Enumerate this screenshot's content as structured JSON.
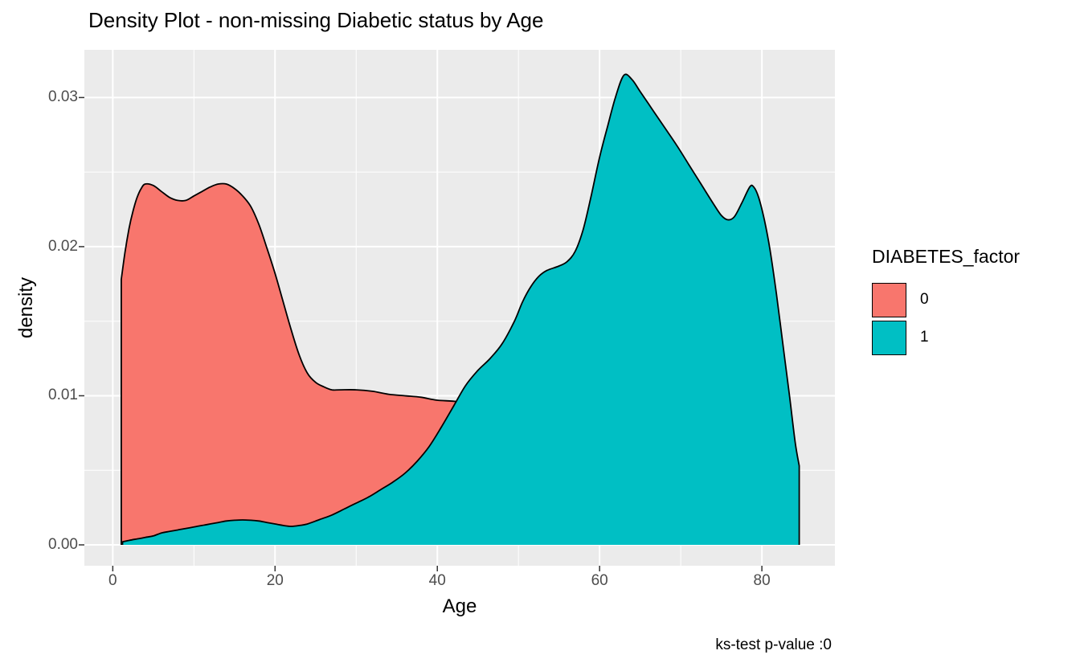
{
  "title": "Density Plot - non-missing Diabetic status by Age",
  "caption": "ks-test p-value :0",
  "legend": {
    "title": "DIABETES_factor",
    "items": [
      {
        "label": "0",
        "color": "#F8766D"
      },
      {
        "label": "1",
        "color": "#00BFC4"
      }
    ]
  },
  "colors": {
    "panel_bg": "#EBEBEB",
    "grid": "#FFFFFF",
    "outline": "#000000",
    "tick_mark": "#333333",
    "tick_text": "#4D4D4D",
    "fill_0": "#F8766D",
    "fill_1": "#00BFC4"
  },
  "chart_data": {
    "type": "area",
    "subtype": "density",
    "title": "Density Plot - non-missing Diabetic status by Age",
    "xlabel": "Age",
    "ylabel": "density",
    "legend_title": "DIABETES_factor",
    "legend_position": "right",
    "grid": "white major and minor gridlines on grey panel",
    "xlim": [
      -3.5,
      89
    ],
    "ylim": [
      -0.0014,
      0.0332
    ],
    "x_ticks": [
      0,
      20,
      40,
      60,
      80
    ],
    "y_ticks": [
      {
        "label": "0.00",
        "value": 0
      },
      {
        "label": "0.01",
        "value": 0.01
      },
      {
        "label": "0.02",
        "value": 0.02
      },
      {
        "label": "0.03",
        "value": 0.03
      }
    ],
    "annotation": "ks-test p-value :0",
    "series": [
      {
        "name": "0",
        "fill": "#F8766D",
        "points": [
          [
            1.05,
            0.0178
          ],
          [
            1.5,
            0.0196
          ],
          [
            2,
            0.0212
          ],
          [
            2.5,
            0.0224
          ],
          [
            3,
            0.0233
          ],
          [
            3.5,
            0.0239
          ],
          [
            4,
            0.0242
          ],
          [
            5,
            0.0241
          ],
          [
            6,
            0.0237
          ],
          [
            7,
            0.0233
          ],
          [
            8,
            0.0231
          ],
          [
            9,
            0.0231
          ],
          [
            10,
            0.0234
          ],
          [
            11,
            0.0237
          ],
          [
            12,
            0.024
          ],
          [
            13,
            0.0242
          ],
          [
            14,
            0.0242
          ],
          [
            15,
            0.0239
          ],
          [
            16,
            0.0234
          ],
          [
            17,
            0.0227
          ],
          [
            18,
            0.0215
          ],
          [
            19,
            0.0199
          ],
          [
            20,
            0.0182
          ],
          [
            21,
            0.0163
          ],
          [
            22,
            0.0144
          ],
          [
            23,
            0.0127
          ],
          [
            24,
            0.0115
          ],
          [
            25,
            0.0109
          ],
          [
            26,
            0.0106
          ],
          [
            27,
            0.0104
          ],
          [
            28,
            0.0104
          ],
          [
            30,
            0.0104
          ],
          [
            32,
            0.0103
          ],
          [
            34,
            0.0101
          ],
          [
            36,
            0.01
          ],
          [
            38,
            0.0099
          ],
          [
            40,
            0.0097
          ],
          [
            42.5,
            0.0096
          ],
          [
            45,
            0.0092
          ],
          [
            48,
            0.0085
          ],
          [
            51,
            0.0076
          ],
          [
            54,
            0.0064
          ],
          [
            57,
            0.0051
          ],
          [
            60,
            0.0038
          ],
          [
            63,
            0.0026
          ],
          [
            66,
            0.0016
          ],
          [
            69,
            0.0009
          ],
          [
            72,
            0.0004
          ],
          [
            75,
            0.0002
          ],
          [
            77,
            0.0001
          ]
        ]
      },
      {
        "name": "1",
        "fill": "#00BFC4",
        "points": [
          [
            1.2,
            0.0002
          ],
          [
            2,
            0.0003
          ],
          [
            3,
            0.0004
          ],
          [
            4,
            0.0005
          ],
          [
            5,
            0.0006
          ],
          [
            6,
            0.0008
          ],
          [
            7,
            0.0009
          ],
          [
            8,
            0.001
          ],
          [
            9,
            0.0011
          ],
          [
            10,
            0.0012
          ],
          [
            11,
            0.0013
          ],
          [
            12,
            0.0014
          ],
          [
            13,
            0.0015
          ],
          [
            14,
            0.0016
          ],
          [
            15,
            0.00165
          ],
          [
            16,
            0.00167
          ],
          [
            17,
            0.00165
          ],
          [
            18,
            0.0016
          ],
          [
            19,
            0.0015
          ],
          [
            20,
            0.0014
          ],
          [
            21,
            0.0013
          ],
          [
            22,
            0.00124
          ],
          [
            23,
            0.0013
          ],
          [
            24,
            0.0014
          ],
          [
            25.5,
            0.0017
          ],
          [
            27,
            0.002
          ],
          [
            28.5,
            0.0024
          ],
          [
            30,
            0.0028
          ],
          [
            31.5,
            0.0032
          ],
          [
            33,
            0.0037
          ],
          [
            34.5,
            0.0042
          ],
          [
            36,
            0.0048
          ],
          [
            37.5,
            0.0056
          ],
          [
            39,
            0.0066
          ],
          [
            40.5,
            0.0079
          ],
          [
            42,
            0.0093
          ],
          [
            43.5,
            0.0107
          ],
          [
            45,
            0.0117
          ],
          [
            46.5,
            0.0125
          ],
          [
            48,
            0.0135
          ],
          [
            49.5,
            0.015
          ],
          [
            50.5,
            0.0163
          ],
          [
            51.5,
            0.0173
          ],
          [
            52.5,
            0.018
          ],
          [
            53.5,
            0.0184
          ],
          [
            55,
            0.0187
          ],
          [
            56,
            0.019
          ],
          [
            57,
            0.0197
          ],
          [
            58,
            0.0212
          ],
          [
            59,
            0.0235
          ],
          [
            60,
            0.026
          ],
          [
            61,
            0.0281
          ],
          [
            62,
            0.0301
          ],
          [
            63,
            0.0315
          ],
          [
            64,
            0.0312
          ],
          [
            65,
            0.0304
          ],
          [
            66.5,
            0.0292
          ],
          [
            68,
            0.028
          ],
          [
            69.5,
            0.0268
          ],
          [
            71,
            0.0255
          ],
          [
            72.5,
            0.0242
          ],
          [
            74,
            0.0229
          ],
          [
            75,
            0.0221
          ],
          [
            75.8,
            0.0218
          ],
          [
            76.6,
            0.022
          ],
          [
            77.5,
            0.0229
          ],
          [
            78.5,
            0.024
          ],
          [
            79,
            0.024
          ],
          [
            79.6,
            0.0233
          ],
          [
            80.3,
            0.0218
          ],
          [
            81,
            0.0198
          ],
          [
            81.8,
            0.0168
          ],
          [
            82.6,
            0.0134
          ],
          [
            83.4,
            0.01
          ],
          [
            84.1,
            0.0069
          ],
          [
            84.6,
            0.0053
          ]
        ]
      }
    ]
  }
}
